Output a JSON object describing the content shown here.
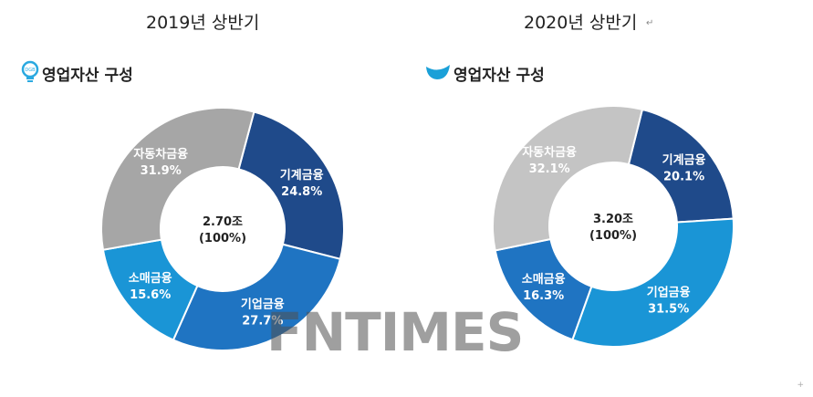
{
  "titles": {
    "left": "2019년  상반기",
    "right": "2020년  상반기",
    "paragraph_mark": "↵"
  },
  "section_title": "영업자산 구성",
  "watermark": "FNTIMES",
  "corner_mark": "+",
  "colors": {
    "기계금융": "#1f4a8a",
    "기업금융": "#1f74c2",
    "소매금융": "#1a95d6",
    "자동차금융": "#a6a6a6",
    "자동차금융_2020": "#c4c4c4",
    "logo_2019": "#2aa9e0",
    "logo_2020": "#1aa0d8"
  },
  "icons": {
    "logo_2019": "lightbulb-logo-icon",
    "logo_2020": "wave-logo-icon"
  },
  "chart_data": [
    {
      "type": "pie",
      "subtitle": "2019년  상반기",
      "title": "영업자산 구성",
      "center_text": [
        "2.70조",
        "(100%)"
      ],
      "slices": [
        {
          "name": "기계금융",
          "value": 24.8,
          "label": "24.8%",
          "color": "#1f4a8a"
        },
        {
          "name": "기업금융",
          "value": 27.7,
          "label": "27.7%",
          "color": "#1f74c2"
        },
        {
          "name": "소매금융",
          "value": 15.6,
          "label": "15.6%",
          "color": "#1a95d6"
        },
        {
          "name": "자동차금융",
          "value": 31.9,
          "label": "31.9%",
          "color": "#a6a6a6"
        }
      ]
    },
    {
      "type": "pie",
      "subtitle": "2020년  상반기",
      "title": "영업자산 구성",
      "center_text": [
        "3.20조",
        "(100%)"
      ],
      "slices": [
        {
          "name": "기계금융",
          "value": 20.1,
          "label": "20.1%",
          "color": "#1f4a8a"
        },
        {
          "name": "기업금융",
          "value": 31.5,
          "label": "31.5%",
          "color": "#1a95d6"
        },
        {
          "name": "소매금융",
          "value": 16.3,
          "label": "16.3%",
          "color": "#1f74c2"
        },
        {
          "name": "자동차금융",
          "value": 32.1,
          "label": "32.1%",
          "color": "#c4c4c4"
        }
      ]
    }
  ]
}
